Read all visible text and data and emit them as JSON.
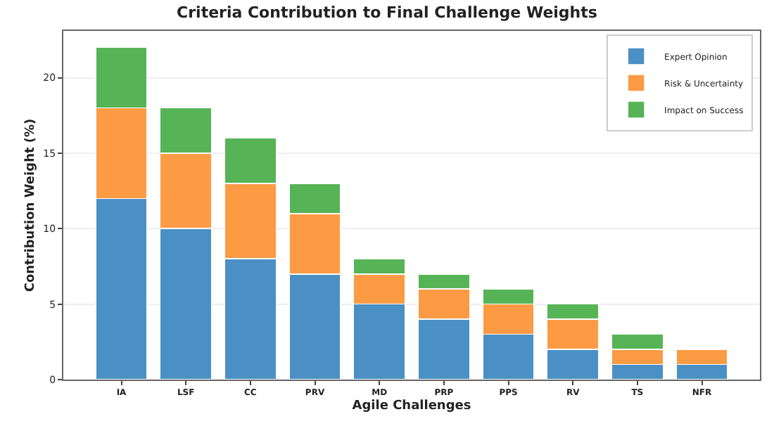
{
  "chart_data": {
    "type": "bar",
    "stacked": true,
    "title": "Criteria Contribution to Final Challenge Weights",
    "xlabel": "Agile Challenges",
    "ylabel": "Contribution Weight (%)",
    "categories": [
      "IA",
      "LSF",
      "CC",
      "PRV",
      "MD",
      "PRP",
      "PPS",
      "RV",
      "TS",
      "NFR"
    ],
    "series": [
      {
        "name": "Expert Opinion",
        "color": "#4a90c4",
        "values": [
          12,
          10,
          8,
          7,
          5,
          4,
          3,
          2,
          1,
          1
        ]
      },
      {
        "name": "Risk & Uncertainty",
        "color": "#fd9a44",
        "values": [
          6,
          5,
          5,
          4,
          2,
          2,
          2,
          2,
          1,
          1
        ]
      },
      {
        "name": "Impact on Success",
        "color": "#56b456",
        "values": [
          4,
          3,
          3,
          2,
          1,
          1,
          1,
          1,
          1,
          0
        ]
      }
    ],
    "ylim": [
      0,
      23.1
    ],
    "yticks": [
      0,
      5,
      10,
      15,
      20
    ],
    "grid": "y",
    "legend": "top right"
  }
}
